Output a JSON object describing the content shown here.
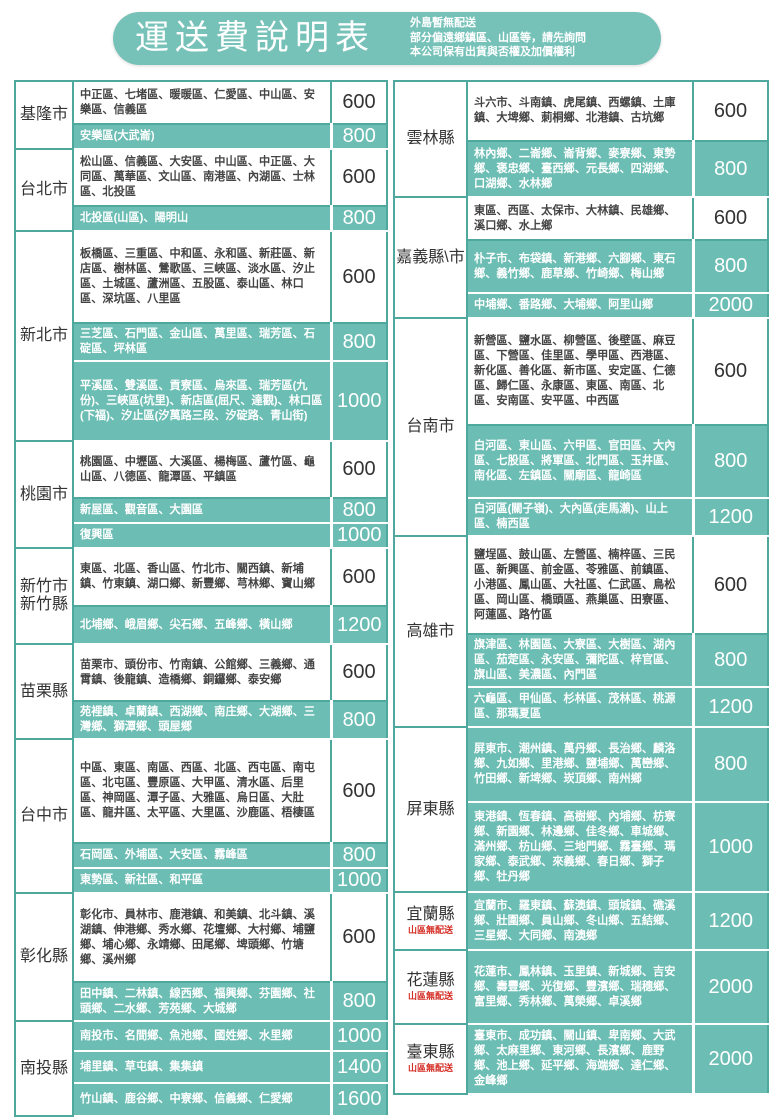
{
  "header": {
    "title": "運送費說明表",
    "notes": [
      "外島暫無配送",
      "部分偏遠鄉鎮區、山區等，請先詢問",
      "本公司保有出貨與否權及加價權利"
    ]
  },
  "colors": {
    "accent": "#6cbdb3",
    "border": "#4fa89d",
    "warning": "#d42b22"
  },
  "left_regions": [
    {
      "name": "基隆市",
      "rows": [
        {
          "areas": "中正區、七堵區、暖暖區、仁愛區、中山區、安樂區、信義區",
          "price": "600",
          "style": "white"
        },
        {
          "areas": "安樂區(大武崙)",
          "price": "800",
          "style": "teal"
        }
      ]
    },
    {
      "name": "台北市",
      "rows": [
        {
          "areas": "松山區、信義區、大安區、中山區、中正區、大同區、萬華區、文山區、南港區、內湖區、士林區、北投區",
          "price": "600",
          "style": "white"
        },
        {
          "areas": "北投區(山區)、陽明山",
          "price": "800",
          "style": "teal"
        }
      ]
    },
    {
      "name": "新北市",
      "rows": [
        {
          "areas": "板橋區、三重區、中和區、永和區、新莊區、新店區、樹林區、鶯歌區、三峽區、淡水區、汐止區、土城區、蘆洲區、五股區、泰山區、林口區、深坑區、八里區",
          "price": "600",
          "style": "white"
        },
        {
          "areas": "三芝區、石門區、金山區、萬里區、瑞芳區、石碇區、坪林區",
          "price": "800",
          "style": "teal"
        },
        {
          "areas": "平溪區、雙溪區、貢寮區、烏來區、瑞芳區(九份)、三峽區(坑里)、新店區(屈尺、達觀)、林口區(下福)、汐止區(汐萬路三段、汐碇路、青山街)",
          "price": "1000",
          "style": "teal"
        }
      ]
    },
    {
      "name": "桃園市",
      "rows": [
        {
          "areas": "桃園區、中壢區、大溪區、楊梅區、蘆竹區、龜山區、八德區、龍潭區、平鎮區",
          "price": "600",
          "style": "white"
        },
        {
          "areas": "新屋區、觀音區、大園區",
          "price": "800",
          "style": "teal"
        },
        {
          "areas": "復興區",
          "price": "1000",
          "style": "teal"
        }
      ]
    },
    {
      "name": "新竹市 新竹縣",
      "rows": [
        {
          "areas": "東區、北區、香山區、竹北市、關西鎮、新埔鎮、竹東鎮、湖口鄉、新豐鄉、芎林鄉、寶山鄉",
          "price": "600",
          "style": "white"
        },
        {
          "areas": "北埔鄉、峨眉鄉、尖石鄉、五峰鄉、橫山鄉",
          "price": "1200",
          "style": "teal"
        }
      ]
    },
    {
      "name": "苗栗縣",
      "rows": [
        {
          "areas": "苗栗市、頭份市、竹南鎮、公館鄉、三義鄉、通霄鎮、後龍鎮、造橋鄉、銅鑼鄉、泰安鄉",
          "price": "600",
          "style": "white"
        },
        {
          "areas": "苑裡鎮、卓蘭鎮、西湖鄉、南庄鄉、大湖鄉、三灣鄉、獅潭鄉、頭屋鄉",
          "price": "800",
          "style": "teal"
        }
      ]
    },
    {
      "name": "台中市",
      "rows": [
        {
          "areas": "中區、東區、南區、西區、北區、西屯區、南屯區、北屯區、豐原區、大甲區、清水區、后里區、神岡區、潭子區、大雅區、烏日區、大肚區、龍井區、太平區、大里區、沙鹿區、梧棲區",
          "price": "600",
          "style": "white"
        },
        {
          "areas": "石岡區、外埔區、大安區、霧峰區",
          "price": "800",
          "style": "teal"
        },
        {
          "areas": "東勢區、新社區、和平區",
          "price": "1000",
          "style": "teal"
        }
      ]
    },
    {
      "name": "彰化縣",
      "rows": [
        {
          "areas": "彰化市、員林市、鹿港鎮、和美鎮、北斗鎮、溪湖鎮、伸港鄉、秀水鄉、花壇鄉、大村鄉、埔鹽鄉、埔心鄉、永靖鄉、田尾鄉、埤頭鄉、竹塘鄉、溪州鄉",
          "price": "600",
          "style": "white"
        },
        {
          "areas": "田中鎮、二林鎮、線西鄉、福興鄉、芬園鄉、社頭鄉、二水鄉、芳苑鄉、大城鄉",
          "price": "800",
          "style": "teal"
        }
      ]
    },
    {
      "name": "南投縣",
      "rows": [
        {
          "areas": "南投市、名間鄉、魚池鄉、國姓鄉、水里鄉",
          "price": "1000",
          "style": "teal"
        },
        {
          "areas": "埔里鎮、草屯鎮、集集鎮",
          "price": "1400",
          "style": "teal"
        },
        {
          "areas": "竹山鎮、鹿谷鄉、中寮鄉、信義鄉、仁愛鄉",
          "price": "1600",
          "style": "teal"
        }
      ]
    }
  ],
  "right_regions": [
    {
      "name": "雲林縣",
      "rows": [
        {
          "areas": "斗六市、斗南鎮、虎尾鎮、西螺鎮、土庫鎮、大埤鄉、莿桐鄉、北港鎮、古坑鄉",
          "price": "600",
          "style": "white"
        },
        {
          "areas": "林內鄉、二崙鄉、崙背鄉、麥寮鄉、東勢鄉、褒忠鄉、臺西鄉、元長鄉、四湖鄉、口湖鄉、水林鄉",
          "price": "800",
          "style": "teal"
        }
      ]
    },
    {
      "name": "嘉義縣\\市",
      "rows": [
        {
          "areas": "東區、西區、太保市、大林鎮、民雄鄉、溪口鄉、水上鄉",
          "price": "600",
          "style": "white"
        },
        {
          "areas": "朴子市、布袋鎮、新港鄉、六腳鄉、東石鄉、義竹鄉、鹿草鄉、竹崎鄉、梅山鄉",
          "price": "800",
          "style": "teal"
        },
        {
          "areas": "中埔鄉、番路鄉、大埔鄉、阿里山鄉",
          "price": "2000",
          "style": "teal"
        }
      ]
    },
    {
      "name": "台南市",
      "rows": [
        {
          "areas": "新營區、鹽水區、柳營區、後壁區、麻豆區、下營區、佳里區、學甲區、西港區、新化區、善化區、新市區、安定區、仁德區、歸仁區、永康區、東區、南區、北區、安南區、安平區、中西區",
          "price": "600",
          "style": "white"
        },
        {
          "areas": "白河區、東山區、六甲區、官田區、大內區、七股區、將軍區、北門區、玉井區、南化區、左鎮區、關廟區、龍崎區",
          "price": "800",
          "style": "teal"
        },
        {
          "areas": "白河區(關子嶺)、大內區(走馬瀨)、山上區、楠西區",
          "price": "1200",
          "style": "teal"
        }
      ]
    },
    {
      "name": "高雄市",
      "rows": [
        {
          "areas": "鹽埕區、鼓山區、左營區、楠梓區、三民區、新興區、前金區、苓雅區、前鎮區、小港區、鳳山區、大社區、仁武區、鳥松區、岡山區、橋頭區、燕巢區、田寮區、阿蓮區、路竹區",
          "price": "600",
          "style": "white"
        },
        {
          "areas": "旗津區、林園區、大寮區、大樹區、湖內區、茄萣區、永安區、彌陀區、梓官區、旗山區、美濃區、內門區",
          "price": "800",
          "style": "teal"
        },
        {
          "areas": "六龜區、甲仙區、杉林區、茂林區、桃源區、那瑪夏區",
          "price": "1200",
          "style": "teal"
        }
      ]
    },
    {
      "name": "屏東縣",
      "rows": [
        {
          "areas": "屏東市、潮州鎮、萬丹鄉、長治鄉、麟洛鄉、九如鄉、里港鄉、鹽埔鄉、萬巒鄉、竹田鄉、新埤鄉、崁頂鄉、南州鄉",
          "price": "800",
          "style": "teal"
        },
        {
          "areas": "東港鎮、恆春鎮、高樹鄉、內埔鄉、枋寮鄉、新園鄉、林邊鄉、佳冬鄉、車城鄉、滿州鄉、枋山鄉、三地門鄉、霧臺鄉、瑪家鄉、泰武鄉、來義鄉、春日鄉、獅子鄉、牡丹鄉",
          "price": "1000",
          "style": "teal"
        }
      ]
    },
    {
      "name": "宜蘭縣",
      "warning": "山區無配送",
      "rows": [
        {
          "areas": "宜蘭市、羅東鎮、蘇澳鎮、頭城鎮、礁溪鄉、壯圍鄉、員山鄉、冬山鄉、五結鄉、三星鄉、大同鄉、南澳鄉",
          "price": "1200",
          "style": "teal"
        }
      ]
    },
    {
      "name": "花蓮縣",
      "warning": "山區無配送",
      "rows": [
        {
          "areas": "花蓮市、鳳林鎮、玉里鎮、新城鄉、吉安鄉、壽豐鄉、光復鄉、豐濱鄉、瑞穗鄉、富里鄉、秀林鄉、萬榮鄉、卓溪鄉",
          "price": "2000",
          "style": "teal"
        }
      ]
    },
    {
      "name": "臺東縣",
      "warning": "山區無配送",
      "rows": [
        {
          "areas": "臺東市、成功鎮、關山鎮、卑南鄉、大武鄉、太麻里鄉、東河鄉、長濱鄉、鹿野鄉、池上鄉、延平鄉、海端鄉、達仁鄉、金峰鄉",
          "price": "2000",
          "style": "teal"
        }
      ]
    }
  ]
}
